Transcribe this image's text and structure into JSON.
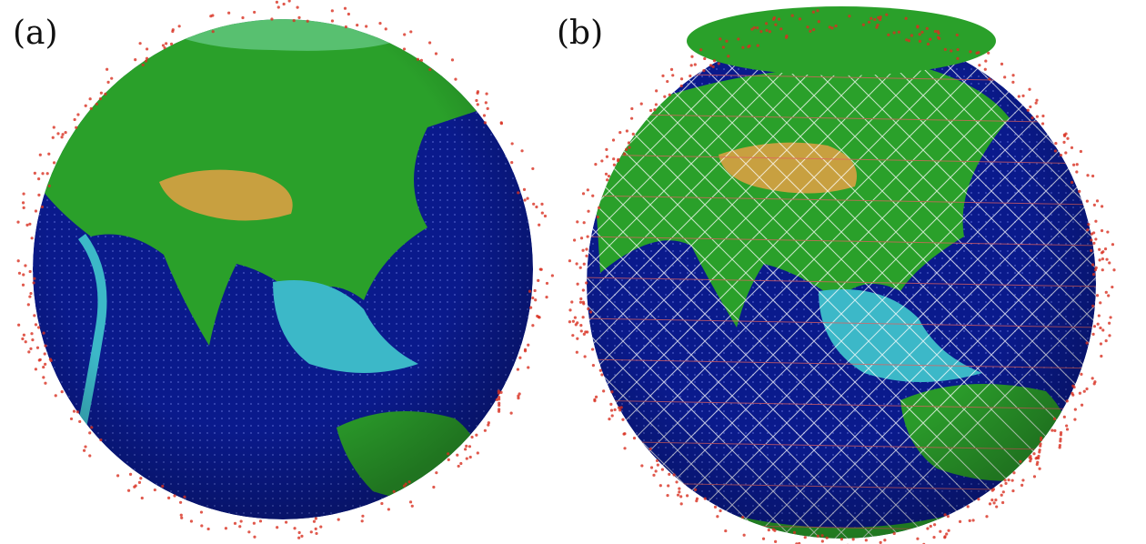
{
  "panels": [
    {
      "label": "(a)"
    },
    {
      "label": "(b)"
    }
  ],
  "colors": {
    "ocean": "#0a1a8c",
    "shelf": "#3cb8c8",
    "land": "#2aa02a",
    "highland": "#c8a040",
    "satellite": "#d83020",
    "links": "#ffffff"
  }
}
